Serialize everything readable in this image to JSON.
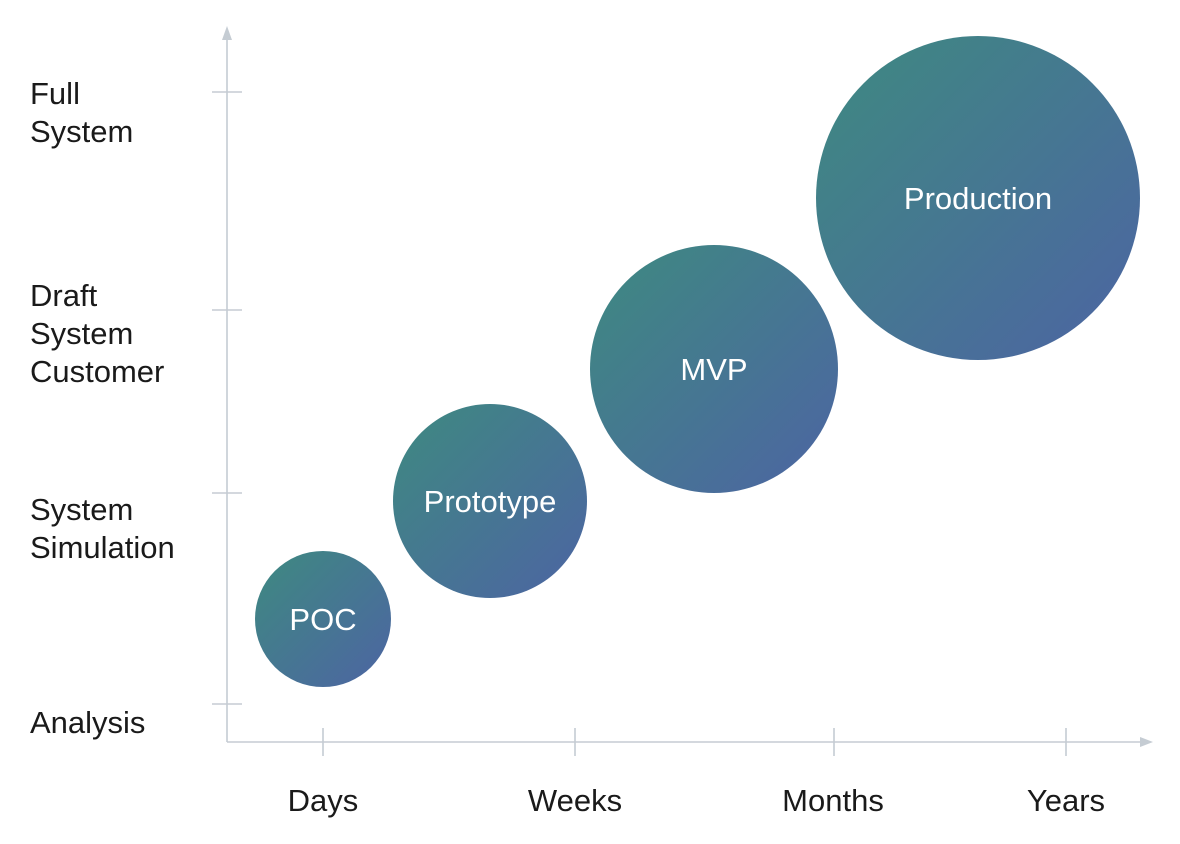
{
  "diagram": {
    "y_axis": {
      "labels": [
        {
          "lines": [
            "Full",
            "System"
          ]
        },
        {
          "lines": [
            "Draft",
            "System",
            "Customer"
          ]
        },
        {
          "lines": [
            "System",
            "Simulation"
          ]
        },
        {
          "lines": [
            "Analysis"
          ]
        }
      ]
    },
    "x_axis": {
      "labels": [
        "Days",
        "Weeks",
        "Months",
        "Years"
      ]
    },
    "bubbles": [
      {
        "label": "POC"
      },
      {
        "label": "Prototype"
      },
      {
        "label": "MVP"
      },
      {
        "label": "Production"
      }
    ],
    "colors": {
      "axis": "#c5ccd3",
      "bubble_start": "#3e8a80",
      "bubble_end": "#4d64a3",
      "text": "#1a1a1a"
    }
  }
}
